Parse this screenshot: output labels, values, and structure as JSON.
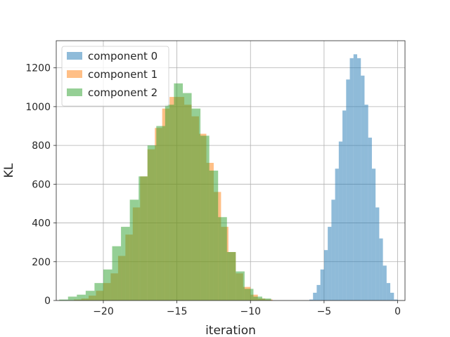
{
  "chart_data": {
    "type": "histogram",
    "title": "",
    "xlabel": "iteration",
    "ylabel": "KL",
    "xlim": [
      -23.2,
      0.5
    ],
    "ylim": [
      0,
      1340
    ],
    "xticks": [
      -20,
      -15,
      -10,
      -5,
      0
    ],
    "xtick_labels": [
      "−20",
      "−15",
      "−10",
      "−5",
      "0"
    ],
    "yticks": [
      0,
      200,
      400,
      600,
      800,
      1000,
      1200
    ],
    "ytick_labels": [
      "0",
      "200",
      "400",
      "600",
      "800",
      "1000",
      "1200"
    ],
    "grid": true,
    "legend_position": "top-left",
    "opacity": 0.5,
    "series": [
      {
        "name": "component 0",
        "color": "#1f77b4",
        "bin_start": -6.0,
        "bin_width": 0.25,
        "values": [
          5,
          40,
          80,
          160,
          260,
          380,
          520,
          680,
          820,
          980,
          1140,
          1250,
          1270,
          1250,
          1160,
          1010,
          840,
          680,
          480,
          320,
          180,
          90,
          40,
          5
        ]
      },
      {
        "name": "component 1",
        "color": "#ff7f0e",
        "bin_start": -22.0,
        "bin_width": 0.5,
        "values": [
          5,
          10,
          25,
          50,
          90,
          140,
          230,
          340,
          480,
          640,
          780,
          890,
          990,
          1050,
          1050,
          1010,
          950,
          860,
          710,
          560,
          380,
          250,
          140,
          70,
          30,
          10,
          5
        ]
      },
      {
        "name": "component 2",
        "color": "#2ca02c",
        "bin_start": -23.0,
        "bin_width": 0.6,
        "values": [
          5,
          20,
          30,
          50,
          90,
          160,
          280,
          380,
          520,
          640,
          800,
          900,
          1010,
          1120,
          1070,
          990,
          850,
          670,
          430,
          250,
          150,
          60,
          20,
          10
        ]
      }
    ]
  }
}
